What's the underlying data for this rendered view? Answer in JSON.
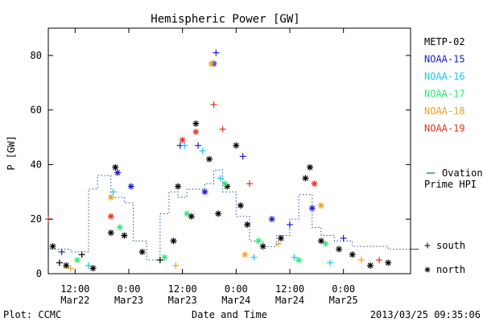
{
  "chart_data": {
    "type": "scatter",
    "title": "Hemispheric Power [GW]",
    "xlabel": "Date and Time",
    "ylabel": "P [GW]",
    "xlim": [
      "2013-03-22 06:00",
      "2013-03-25 15:00"
    ],
    "ylim": [
      0,
      90
    ],
    "y_ticks": [
      0,
      20,
      40,
      60,
      80
    ],
    "x_ticks": [
      {
        "t": "2013-03-22 12:00",
        "line1": "12:00",
        "line2": "Mar22"
      },
      {
        "t": "2013-03-23 00:00",
        "line1": "0:00",
        "line2": "Mar23"
      },
      {
        "t": "2013-03-23 12:00",
        "line1": "12:00",
        "line2": "Mar23"
      },
      {
        "t": "2013-03-24 00:00",
        "line1": "0:00",
        "line2": "Mar24"
      },
      {
        "t": "2013-03-24 12:00",
        "line1": "12:00",
        "line2": "Mar24"
      },
      {
        "t": "2013-03-25 00:00",
        "line1": "0:00",
        "line2": "Mar25"
      }
    ],
    "grid": false,
    "legend_position": "right",
    "marker_legend": [
      {
        "marker": "+",
        "label": "south"
      },
      {
        "marker": "*",
        "label": "north"
      }
    ],
    "series": [
      {
        "name": "METP-02",
        "color": "#000000",
        "points": [
          {
            "x": "2013-03-22 07:00",
            "y": 10,
            "m": "*"
          },
          {
            "x": "2013-03-22 08:30",
            "y": 4,
            "m": "+"
          },
          {
            "x": "2013-03-22 10:00",
            "y": 3,
            "m": "*"
          },
          {
            "x": "2013-03-22 13:30",
            "y": 7,
            "m": "+"
          },
          {
            "x": "2013-03-22 16:00",
            "y": 2,
            "m": "*"
          },
          {
            "x": "2013-03-22 20:00",
            "y": 15,
            "m": "*"
          },
          {
            "x": "2013-03-22 21:00",
            "y": 39,
            "m": "*"
          },
          {
            "x": "2013-03-22 23:00",
            "y": 14,
            "m": "*"
          },
          {
            "x": "2013-03-23 03:00",
            "y": 8,
            "m": "*"
          },
          {
            "x": "2013-03-23 07:00",
            "y": 5,
            "m": "+"
          },
          {
            "x": "2013-03-23 10:00",
            "y": 12,
            "m": "*"
          },
          {
            "x": "2013-03-23 11:00",
            "y": 32,
            "m": "*"
          },
          {
            "x": "2013-03-23 14:00",
            "y": 21,
            "m": "*"
          },
          {
            "x": "2013-03-23 15:00",
            "y": 55,
            "m": "*"
          },
          {
            "x": "2013-03-23 18:00",
            "y": 42,
            "m": "*"
          },
          {
            "x": "2013-03-23 20:00",
            "y": 22,
            "m": "*"
          },
          {
            "x": "2013-03-23 22:00",
            "y": 32,
            "m": "*"
          },
          {
            "x": "2013-03-24 00:00",
            "y": 47,
            "m": "*"
          },
          {
            "x": "2013-03-24 01:00",
            "y": 25,
            "m": "*"
          },
          {
            "x": "2013-03-24 02:30",
            "y": 18,
            "m": "*"
          },
          {
            "x": "2013-03-24 06:00",
            "y": 10,
            "m": "*"
          },
          {
            "x": "2013-03-24 10:00",
            "y": 13,
            "m": "*"
          },
          {
            "x": "2013-03-24 15:30",
            "y": 35,
            "m": "*"
          },
          {
            "x": "2013-03-24 16:30",
            "y": 39,
            "m": "*"
          },
          {
            "x": "2013-03-24 19:00",
            "y": 12,
            "m": "*"
          },
          {
            "x": "2013-03-24 23:00",
            "y": 9,
            "m": "*"
          },
          {
            "x": "2013-03-25 02:00",
            "y": 7,
            "m": "*"
          },
          {
            "x": "2013-03-25 06:00",
            "y": 3,
            "m": "*"
          },
          {
            "x": "2013-03-25 10:00",
            "y": 4,
            "m": "*"
          }
        ]
      },
      {
        "name": "NOAA-15",
        "color": "#1a1ad0",
        "points": [
          {
            "x": "2013-03-22 09:00",
            "y": 8,
            "m": "+"
          },
          {
            "x": "2013-03-22 21:30",
            "y": 37,
            "m": "*"
          },
          {
            "x": "2013-03-23 00:30",
            "y": 32,
            "m": "*"
          },
          {
            "x": "2013-03-23 11:30",
            "y": 47,
            "m": "+"
          },
          {
            "x": "2013-03-23 15:30",
            "y": 47,
            "m": "+"
          },
          {
            "x": "2013-03-23 17:00",
            "y": 30,
            "m": "*"
          },
          {
            "x": "2013-03-23 19:00",
            "y": 77,
            "m": "*"
          },
          {
            "x": "2013-03-23 19:30",
            "y": 81,
            "m": "+"
          },
          {
            "x": "2013-03-24 01:30",
            "y": 43,
            "m": "+"
          },
          {
            "x": "2013-03-24 08:00",
            "y": 20,
            "m": "*"
          },
          {
            "x": "2013-03-24 12:00",
            "y": 18,
            "m": "+"
          },
          {
            "x": "2013-03-24 17:00",
            "y": 24,
            "m": "*"
          },
          {
            "x": "2013-03-25 00:00",
            "y": 13,
            "m": "+"
          }
        ]
      },
      {
        "name": "NOAA-16",
        "color": "#19c6e6",
        "points": [
          {
            "x": "2013-03-22 15:00",
            "y": 3,
            "m": "+"
          },
          {
            "x": "2013-03-22 20:30",
            "y": 30,
            "m": "+"
          },
          {
            "x": "2013-03-23 12:30",
            "y": 47,
            "m": "+"
          },
          {
            "x": "2013-03-23 16:30",
            "y": 45,
            "m": "+"
          },
          {
            "x": "2013-03-23 20:30",
            "y": 35,
            "m": "+"
          },
          {
            "x": "2013-03-24 04:00",
            "y": 6,
            "m": "+"
          },
          {
            "x": "2013-03-24 13:00",
            "y": 6,
            "m": "+"
          },
          {
            "x": "2013-03-24 21:00",
            "y": 4,
            "m": "+"
          }
        ]
      },
      {
        "name": "NOAA-17",
        "color": "#2ee87a",
        "points": [
          {
            "x": "2013-03-22 12:30",
            "y": 5,
            "m": "*"
          },
          {
            "x": "2013-03-22 22:00",
            "y": 17,
            "m": "*"
          },
          {
            "x": "2013-03-23 08:00",
            "y": 6,
            "m": "*"
          },
          {
            "x": "2013-03-23 13:00",
            "y": 22,
            "m": "*"
          },
          {
            "x": "2013-03-23 21:30",
            "y": 33,
            "m": "*"
          },
          {
            "x": "2013-03-24 05:00",
            "y": 12,
            "m": "*"
          },
          {
            "x": "2013-03-24 14:00",
            "y": 5,
            "m": "*"
          },
          {
            "x": "2013-03-24 20:00",
            "y": 11,
            "m": "*"
          }
        ]
      },
      {
        "name": "NOAA-18",
        "color": "#f0a020",
        "points": [
          {
            "x": "2013-03-22 11:00",
            "y": 2,
            "m": "+"
          },
          {
            "x": "2013-03-22 20:00",
            "y": 28,
            "m": "*"
          },
          {
            "x": "2013-03-23 10:30",
            "y": 3,
            "m": "+"
          },
          {
            "x": "2013-03-23 18:30",
            "y": 77,
            "m": "*"
          },
          {
            "x": "2013-03-24 02:00",
            "y": 7,
            "m": "*"
          },
          {
            "x": "2013-03-24 09:30",
            "y": 11,
            "m": "+"
          },
          {
            "x": "2013-03-24 19:00",
            "y": 25,
            "m": "*"
          },
          {
            "x": "2013-03-25 04:00",
            "y": 5,
            "m": "+"
          }
        ]
      },
      {
        "name": "NOAA-19",
        "color": "#e83020",
        "points": [
          {
            "x": "2013-03-22 06:00",
            "y": 20,
            "m": "+"
          },
          {
            "x": "2013-03-22 20:00",
            "y": 21,
            "m": "*"
          },
          {
            "x": "2013-03-23 12:00",
            "y": 49,
            "m": "*"
          },
          {
            "x": "2013-03-23 15:00",
            "y": 52,
            "m": "*"
          },
          {
            "x": "2013-03-23 19:00",
            "y": 62,
            "m": "+"
          },
          {
            "x": "2013-03-23 21:00",
            "y": 53,
            "m": "+"
          },
          {
            "x": "2013-03-24 03:00",
            "y": 33,
            "m": "+"
          },
          {
            "x": "2013-03-24 17:30",
            "y": 33,
            "m": "*"
          },
          {
            "x": "2013-03-25 08:00",
            "y": 5,
            "m": "+"
          }
        ]
      }
    ],
    "ovation_label": "Ovation Prime HPI",
    "ovation_line1": "Ovation",
    "ovation_line2": "Prime HPI",
    "ovation_color": "#1a4fa8",
    "ovation_steps": [
      {
        "x": "2013-03-22 06:00",
        "y": 9
      },
      {
        "x": "2013-03-22 11:00",
        "y": 8
      },
      {
        "x": "2013-03-22 15:00",
        "y": 31
      },
      {
        "x": "2013-03-22 17:00",
        "y": 36
      },
      {
        "x": "2013-03-22 20:00",
        "y": 28
      },
      {
        "x": "2013-03-22 23:00",
        "y": 26
      },
      {
        "x": "2013-03-23 01:00",
        "y": 12
      },
      {
        "x": "2013-03-23 04:00",
        "y": 5
      },
      {
        "x": "2013-03-23 07:00",
        "y": 22
      },
      {
        "x": "2013-03-23 09:00",
        "y": 30
      },
      {
        "x": "2013-03-23 11:00",
        "y": 28
      },
      {
        "x": "2013-03-23 13:00",
        "y": 31
      },
      {
        "x": "2013-03-23 17:00",
        "y": 33
      },
      {
        "x": "2013-03-23 19:00",
        "y": 38
      },
      {
        "x": "2013-03-23 21:00",
        "y": 30
      },
      {
        "x": "2013-03-24 00:00",
        "y": 21
      },
      {
        "x": "2013-03-24 03:00",
        "y": 12
      },
      {
        "x": "2013-03-24 06:00",
        "y": 10
      },
      {
        "x": "2013-03-24 09:00",
        "y": 14
      },
      {
        "x": "2013-03-24 12:00",
        "y": 20
      },
      {
        "x": "2013-03-24 14:00",
        "y": 29
      },
      {
        "x": "2013-03-24 17:00",
        "y": 17
      },
      {
        "x": "2013-03-24 19:00",
        "y": 14
      },
      {
        "x": "2013-03-24 22:00",
        "y": 12
      },
      {
        "x": "2013-03-25 02:00",
        "y": 10
      },
      {
        "x": "2013-03-25 06:00",
        "y": 10
      },
      {
        "x": "2013-03-25 10:00",
        "y": 9
      },
      {
        "x": "2013-03-25 15:00",
        "y": 9
      }
    ]
  },
  "footer": {
    "plot_credit": "Plot: CCMC",
    "timestamp": "2013/03/25 09:35:06"
  }
}
